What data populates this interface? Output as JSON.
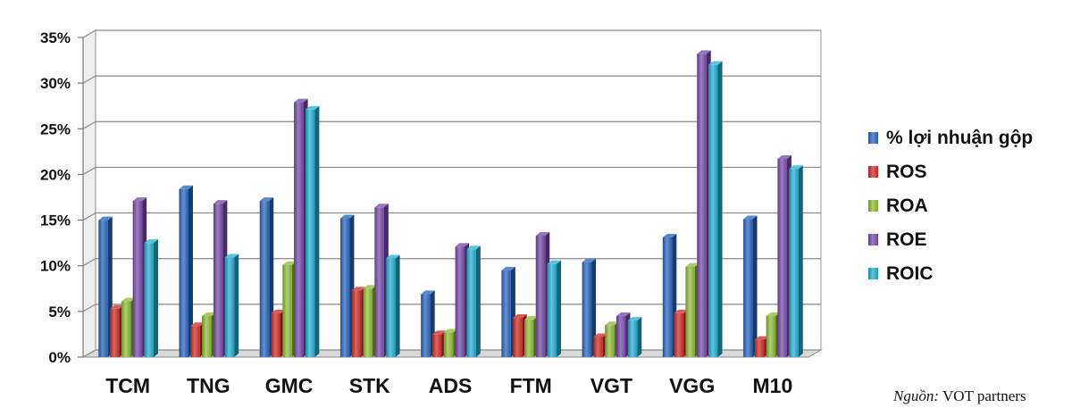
{
  "chart_data": {
    "type": "bar",
    "title": "",
    "xlabel": "",
    "ylabel": "",
    "ylim": [
      0,
      35
    ],
    "yticks": [
      0,
      5,
      10,
      15,
      20,
      25,
      30,
      35
    ],
    "ytick_format": "%",
    "grid": true,
    "legend_position": "right",
    "categories": [
      "TCM",
      "TNG",
      "GMC",
      "STK",
      "ADS",
      "FTM",
      "VGT",
      "VGG",
      "M10"
    ],
    "series": [
      {
        "name": "% lợi nhuận gộp",
        "color": "#2e6bc4",
        "values": [
          15.0,
          18.4,
          17.1,
          15.2,
          6.9,
          9.5,
          10.4,
          13.1,
          15.1
        ]
      },
      {
        "name": "ROS",
        "color": "#d6322a",
        "values": [
          5.3,
          3.4,
          4.8,
          7.3,
          2.5,
          4.3,
          2.2,
          4.8,
          1.9
        ]
      },
      {
        "name": "ROA",
        "color": "#92c13c",
        "values": [
          6.1,
          4.5,
          10.1,
          7.5,
          2.7,
          4.1,
          3.5,
          9.9,
          4.5
        ]
      },
      {
        "name": "ROE",
        "color": "#7d4fb0",
        "values": [
          17.1,
          16.8,
          27.9,
          16.4,
          12.1,
          13.3,
          4.5,
          33.2,
          21.7
        ]
      },
      {
        "name": "ROIC",
        "color": "#28b4d7",
        "values": [
          12.5,
          10.9,
          27.1,
          10.8,
          11.8,
          10.2,
          4.0,
          32.0,
          20.6
        ]
      }
    ]
  },
  "source": {
    "label": "Nguồn:",
    "text": "VOT partners"
  }
}
